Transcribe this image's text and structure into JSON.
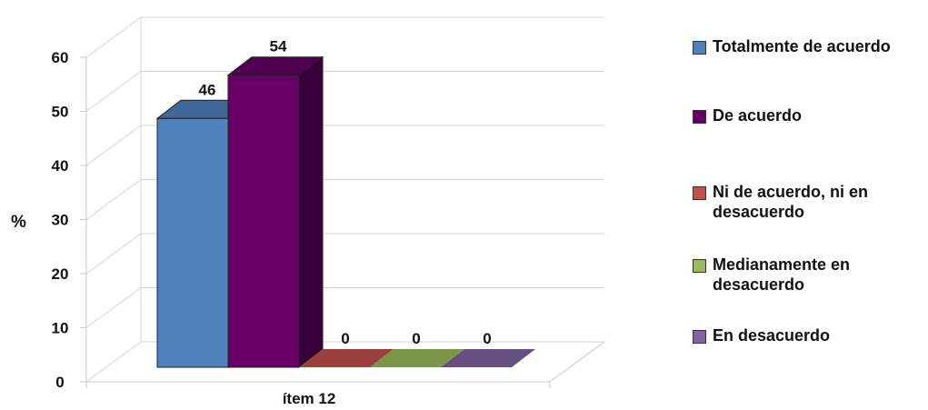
{
  "chart_data": {
    "type": "bar",
    "title": "",
    "xlabel": "",
    "ylabel": "%",
    "ylim": [
      0,
      60
    ],
    "yticks": [
      0,
      10,
      20,
      30,
      40,
      50,
      60
    ],
    "categories": [
      "ítem 12"
    ],
    "grid": true,
    "legend_position": "right",
    "series": [
      {
        "name": "Totalmente de acuerdo",
        "values": [
          46
        ],
        "color": "#4F81BD",
        "label": "46"
      },
      {
        "name": "De acuerdo",
        "values": [
          54
        ],
        "color": "#660066",
        "label": "54"
      },
      {
        "name": "Ni de acuerdo, ni en desacuerdo",
        "values": [
          0
        ],
        "color": "#C0504D",
        "label": "0"
      },
      {
        "name": "Medianamente en desacuerdo",
        "values": [
          0
        ],
        "color": "#9BBB59",
        "label": "0"
      },
      {
        "name": "En desacuerdo",
        "values": [
          0
        ],
        "color": "#8064A2",
        "label": "0"
      }
    ]
  }
}
